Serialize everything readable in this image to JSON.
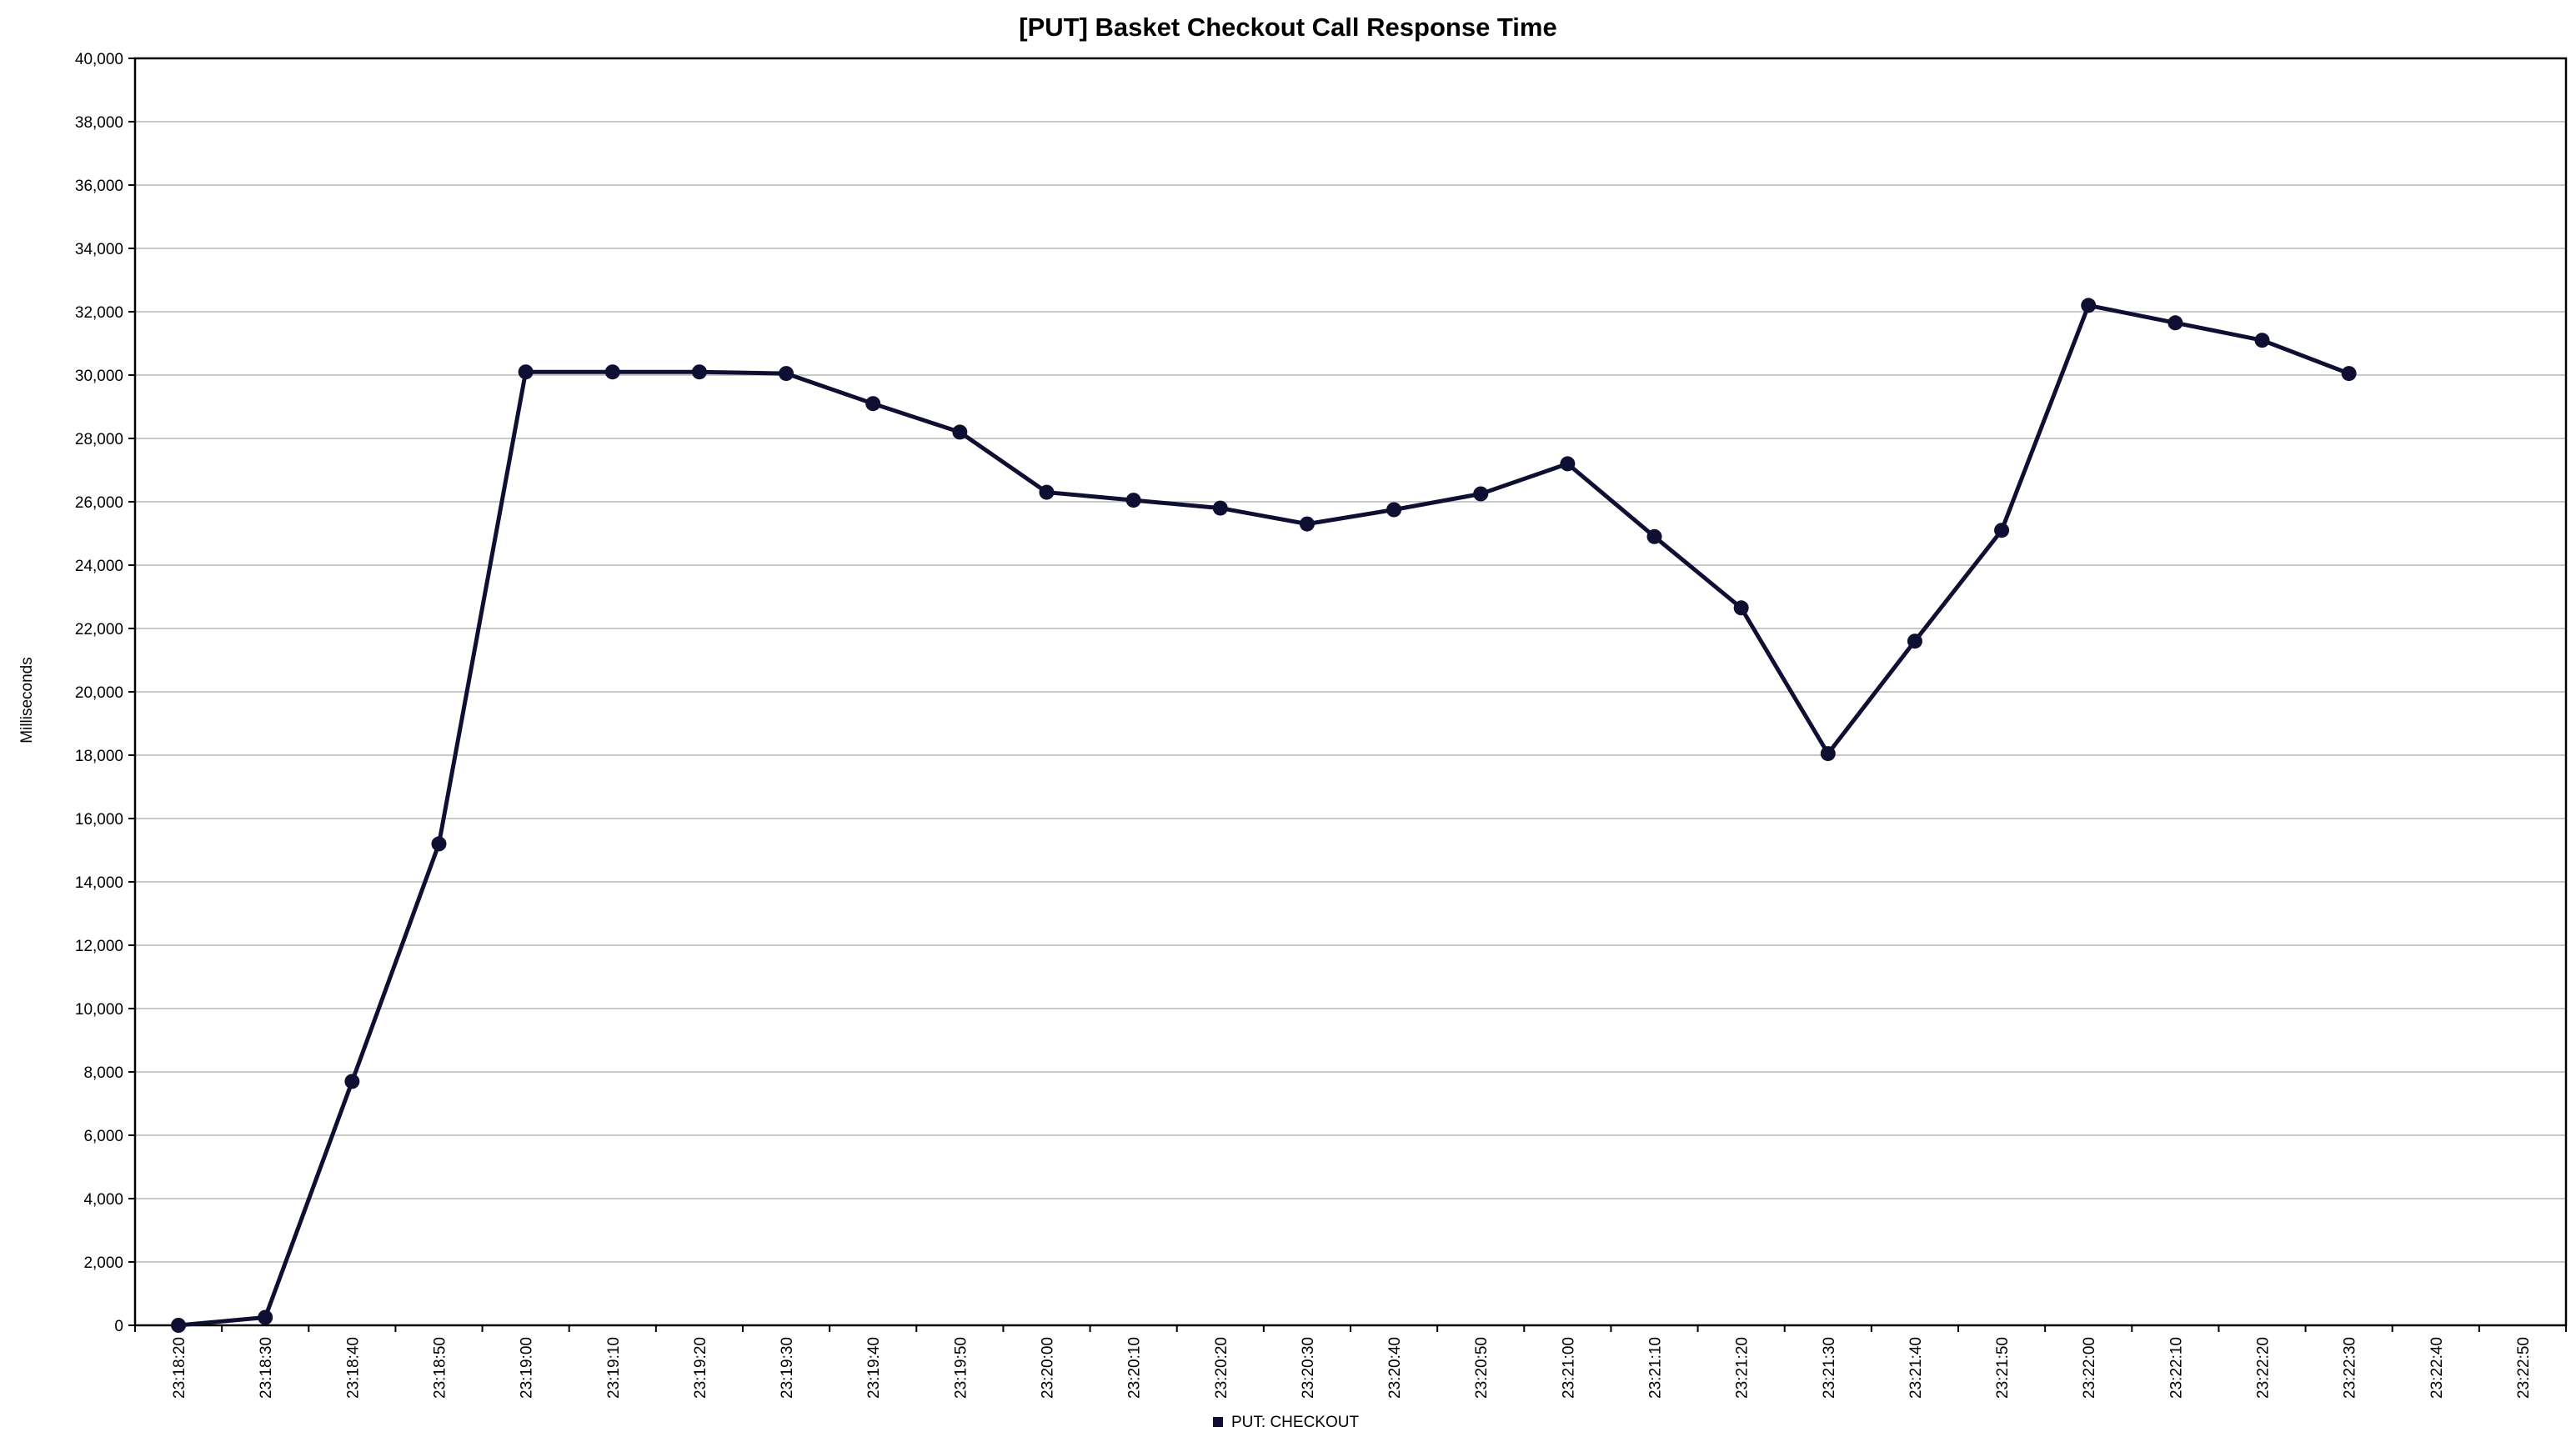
{
  "chart_data": {
    "type": "line",
    "title": "[PUT] Basket Checkout Call Response Time",
    "xlabel": "",
    "ylabel": "Milliseconds",
    "ylim": [
      0,
      40000
    ],
    "yticks": [
      0,
      2000,
      4000,
      6000,
      8000,
      10000,
      12000,
      14000,
      16000,
      18000,
      20000,
      22000,
      24000,
      26000,
      28000,
      30000,
      32000,
      34000,
      36000,
      38000,
      40000
    ],
    "ytick_labels": [
      "0",
      "2,000",
      "4,000",
      "6,000",
      "8,000",
      "10,000",
      "12,000",
      "14,000",
      "16,000",
      "18,000",
      "20,000",
      "22,000",
      "24,000",
      "26,000",
      "28,000",
      "30,000",
      "32,000",
      "34,000",
      "36,000",
      "38,000",
      "40,000"
    ],
    "categories": [
      "23:18:20",
      "23:18:30",
      "23:18:40",
      "23:18:50",
      "23:19:00",
      "23:19:10",
      "23:19:20",
      "23:19:30",
      "23:19:40",
      "23:19:50",
      "23:20:00",
      "23:20:10",
      "23:20:20",
      "23:20:30",
      "23:20:40",
      "23:20:50",
      "23:21:00",
      "23:21:10",
      "23:21:20",
      "23:21:30",
      "23:21:40",
      "23:21:50",
      "23:22:00",
      "23:22:10",
      "23:22:20",
      "23:22:30",
      "23:22:40",
      "23:22:50"
    ],
    "grid": true,
    "legend_position": "bottom-center",
    "colors": {
      "series": "#0f0f33",
      "grid": "#c8c8c8",
      "axis": "#000000"
    },
    "series": [
      {
        "name": "PUT: CHECKOUT",
        "values": [
          0,
          250,
          7700,
          15200,
          30100,
          30100,
          30100,
          30050,
          29100,
          28200,
          26300,
          26050,
          25800,
          25300,
          25750,
          26250,
          27200,
          24900,
          22650,
          18050,
          21600,
          25100,
          32200,
          31650,
          31100,
          30050,
          null,
          null
        ]
      }
    ]
  }
}
